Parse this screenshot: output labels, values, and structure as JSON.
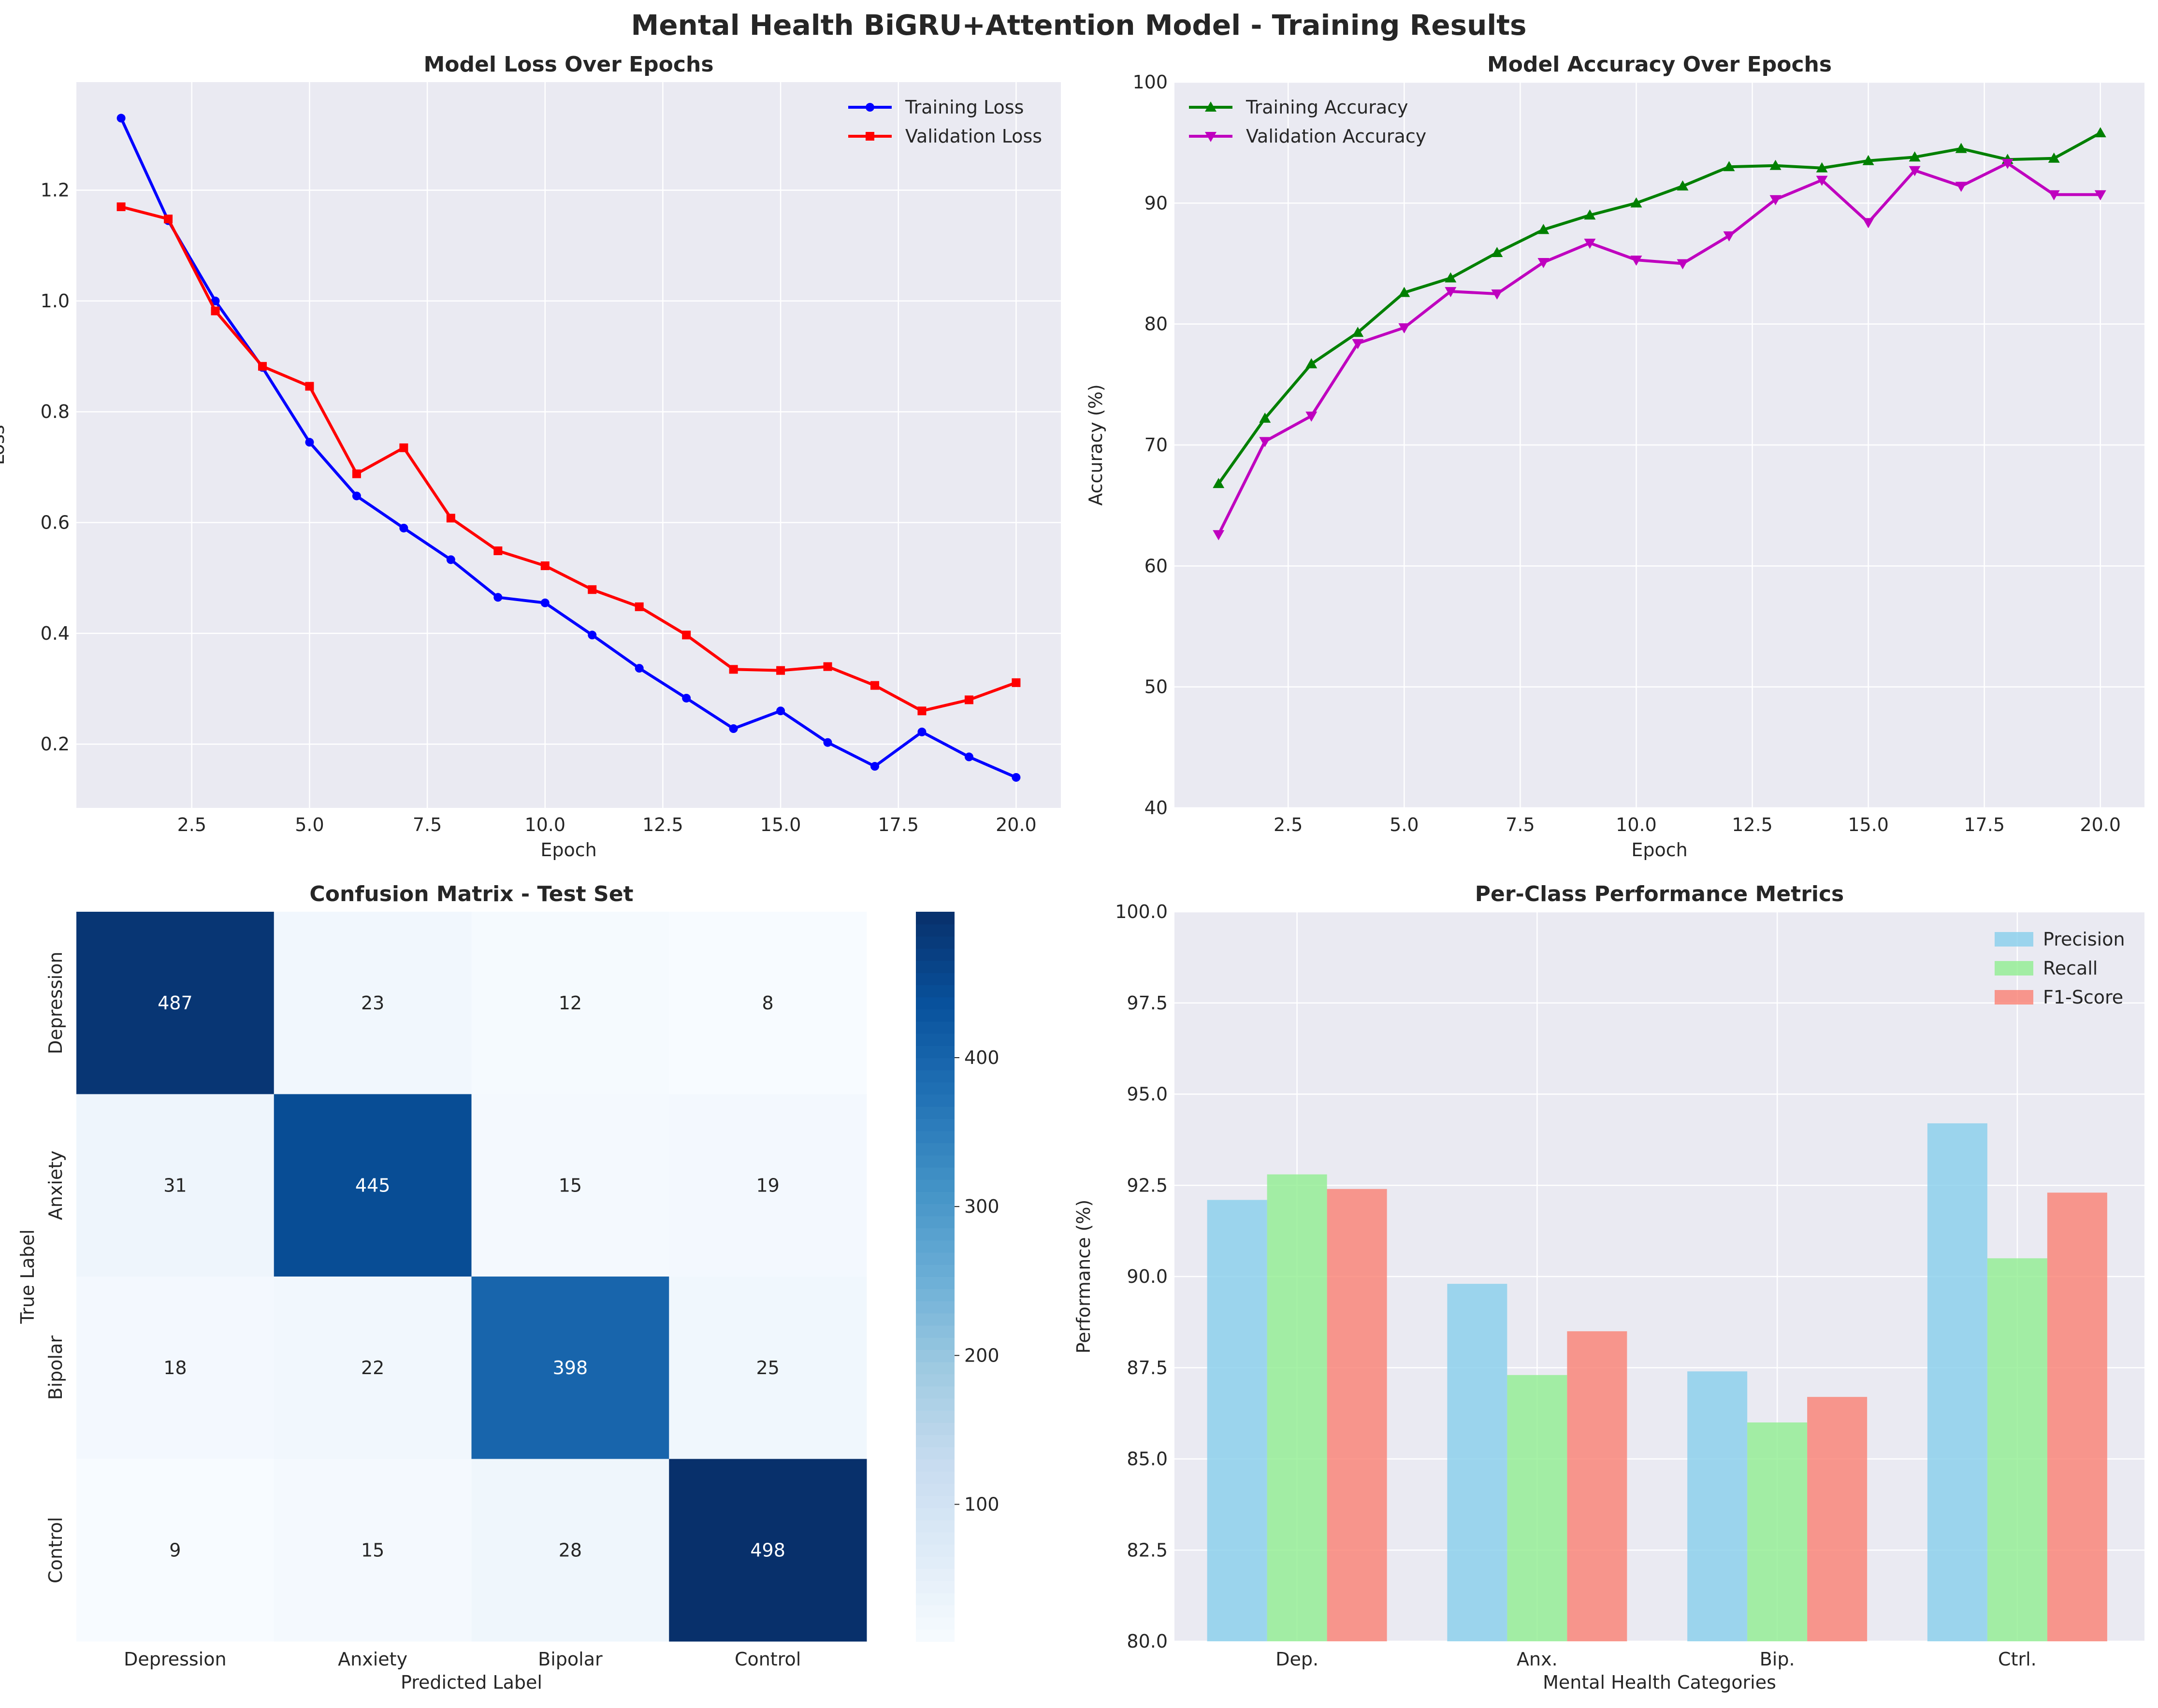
{
  "figure": {
    "title": "Mental Health BiGRU+Attention Model - Training Results"
  },
  "chart_data": [
    {
      "type": "line",
      "title": "Model Loss Over Epochs",
      "xlabel": "Epoch",
      "ylabel": "Loss",
      "xlim": [
        0.05,
        20.95
      ],
      "ylim": [
        0.085,
        1.395
      ],
      "xticks": [
        "2.5",
        "5.0",
        "7.5",
        "10.0",
        "12.5",
        "15.0",
        "17.5",
        "20.0"
      ],
      "yticks": [
        "0.2",
        "0.4",
        "0.6",
        "0.8",
        "1.0",
        "1.2"
      ],
      "grid": true,
      "legend": "top-right",
      "x": [
        1,
        2,
        3,
        4,
        5,
        6,
        7,
        8,
        9,
        10,
        11,
        12,
        13,
        14,
        15,
        16,
        17,
        18,
        19,
        20
      ],
      "series": [
        {
          "name": "Training Loss",
          "color": "#0000ff",
          "marker": "circle",
          "values": [
            1.33,
            1.145,
            1.0,
            0.88,
            0.745,
            0.648,
            0.59,
            0.533,
            0.465,
            0.455,
            0.397,
            0.337,
            0.283,
            0.228,
            0.26,
            0.203,
            0.16,
            0.222,
            0.177,
            0.14
          ]
        },
        {
          "name": "Validation Loss",
          "color": "#ff0000",
          "marker": "square",
          "values": [
            1.17,
            1.148,
            0.982,
            0.882,
            0.846,
            0.688,
            0.735,
            0.608,
            0.549,
            0.522,
            0.479,
            0.448,
            0.397,
            0.335,
            0.333,
            0.34,
            0.306,
            0.26,
            0.28,
            0.311
          ]
        }
      ]
    },
    {
      "type": "line",
      "title": "Model Accuracy Over Epochs",
      "xlabel": "Epoch",
      "ylabel": "Accuracy (%)",
      "xlim": [
        0.05,
        20.95
      ],
      "ylim": [
        40,
        100
      ],
      "xticks": [
        "2.5",
        "5.0",
        "7.5",
        "10.0",
        "12.5",
        "15.0",
        "17.5",
        "20.0"
      ],
      "yticks": [
        "40",
        "50",
        "60",
        "70",
        "80",
        "90",
        "100"
      ],
      "grid": true,
      "legend": "top-left",
      "x": [
        1,
        2,
        3,
        4,
        5,
        6,
        7,
        8,
        9,
        10,
        11,
        12,
        13,
        14,
        15,
        16,
        17,
        18,
        19,
        20
      ],
      "series": [
        {
          "name": "Training Accuracy",
          "color": "#008000",
          "marker": "triangle-up",
          "values": [
            66.8,
            72.2,
            76.7,
            79.3,
            82.6,
            83.8,
            85.9,
            87.8,
            89.0,
            90.0,
            91.4,
            93.0,
            93.1,
            92.9,
            93.5,
            93.8,
            94.5,
            93.6,
            93.7,
            95.8
          ]
        },
        {
          "name": "Validation Accuracy",
          "color": "#bf00bf",
          "marker": "triangle-down",
          "values": [
            62.6,
            70.3,
            72.4,
            78.4,
            79.7,
            82.7,
            82.5,
            85.1,
            86.7,
            85.3,
            85.0,
            87.3,
            90.3,
            91.9,
            88.4,
            92.7,
            91.4,
            93.3,
            90.7,
            90.7
          ]
        }
      ]
    },
    {
      "type": "heatmap",
      "title": "Confusion Matrix - Test Set",
      "xlabel": "Predicted Label",
      "ylabel": "True Label",
      "rows": [
        "Depression",
        "Anxiety",
        "Bipolar",
        "Control"
      ],
      "cols": [
        "Depression",
        "Anxiety",
        "Bipolar",
        "Control"
      ],
      "values": [
        [
          487,
          23,
          12,
          8
        ],
        [
          31,
          445,
          15,
          19
        ],
        [
          18,
          22,
          398,
          25
        ],
        [
          9,
          15,
          28,
          498
        ]
      ],
      "colormap": "Blues",
      "vmin": 8,
      "vmax": 498,
      "colorbar_ticks": [
        "100",
        "200",
        "300",
        "400"
      ]
    },
    {
      "type": "bar",
      "title": "Per-Class Performance Metrics",
      "xlabel": "Mental Health Categories",
      "ylabel": "Performance (%)",
      "ylim": [
        80,
        100
      ],
      "yticks": [
        "80.0",
        "82.5",
        "85.0",
        "87.5",
        "90.0",
        "92.5",
        "95.0",
        "97.5",
        "100.0"
      ],
      "grid": true,
      "legend": "top-right",
      "categories": [
        "Dep.",
        "Anx.",
        "Bip.",
        "Ctrl."
      ],
      "series": [
        {
          "name": "Precision",
          "color": "#87ceeb",
          "values": [
            92.1,
            89.8,
            87.4,
            94.2
          ]
        },
        {
          "name": "Recall",
          "color": "#90ee90",
          "values": [
            92.8,
            87.3,
            86.0,
            90.5
          ]
        },
        {
          "name": "F1-Score",
          "color": "#fa8072",
          "values": [
            92.4,
            88.5,
            86.7,
            92.3
          ]
        }
      ]
    }
  ]
}
